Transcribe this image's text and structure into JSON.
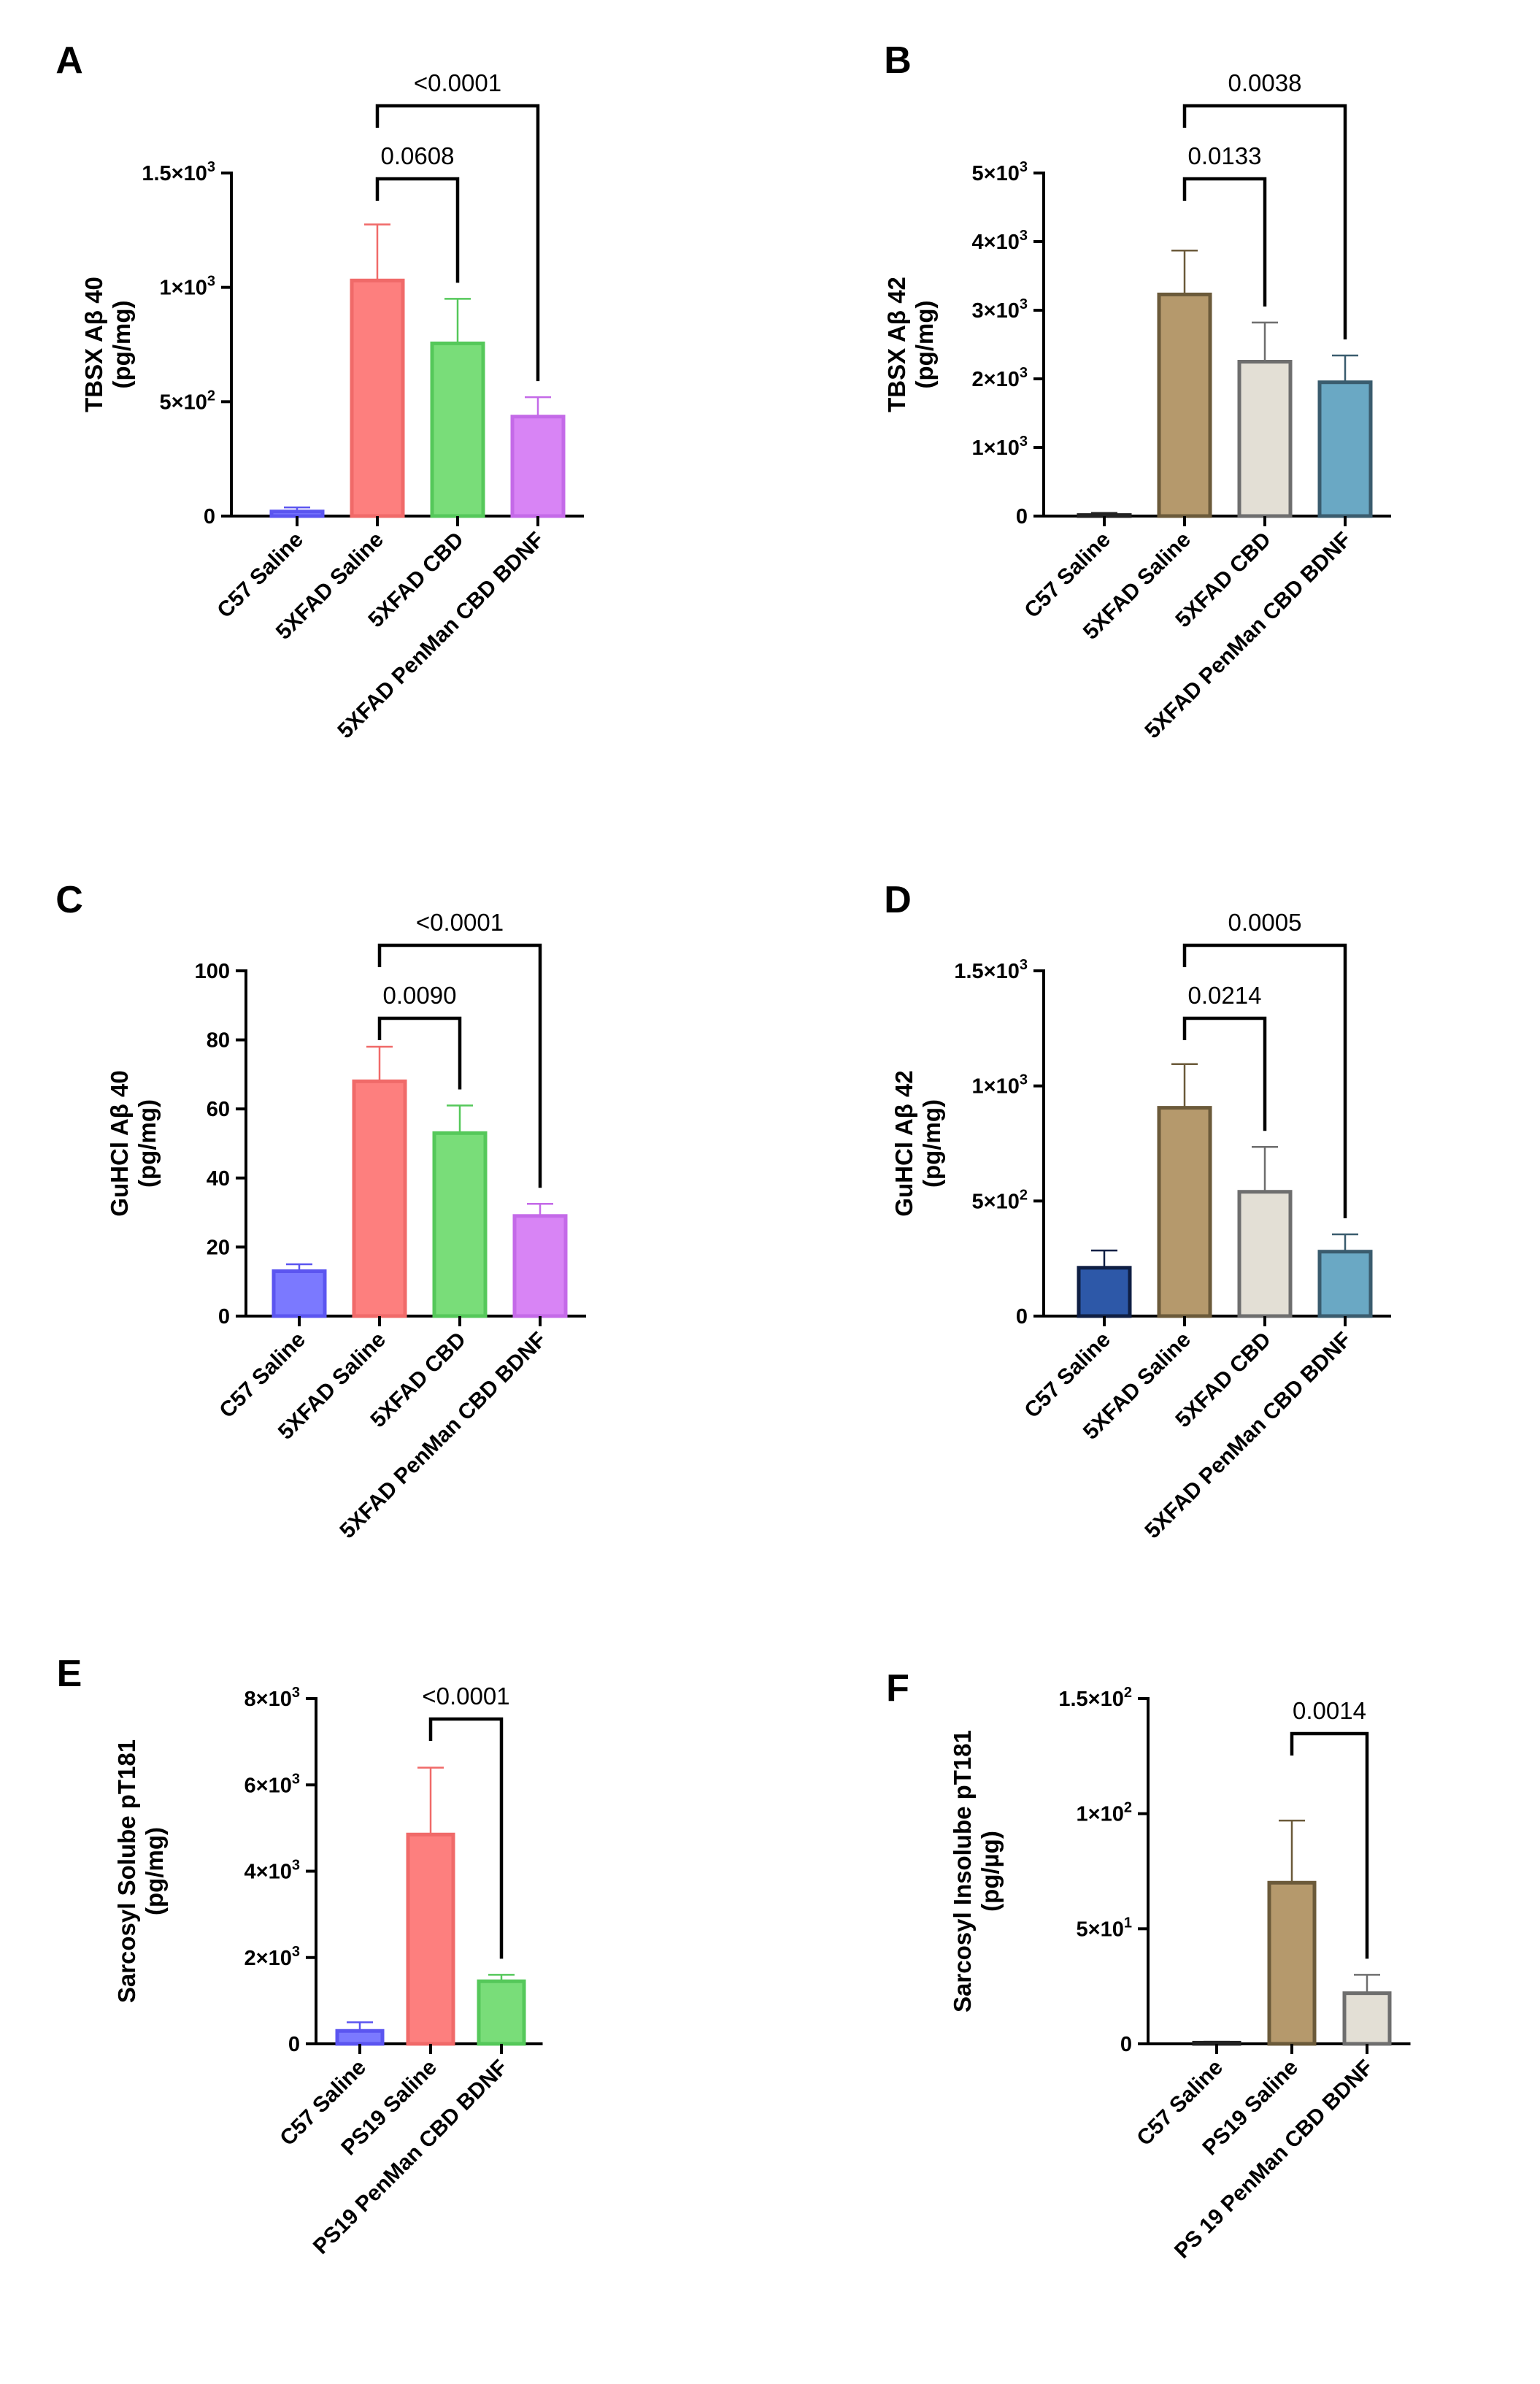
{
  "chart_data": [
    {
      "panel": "A",
      "type": "bar",
      "ylabel": [
        "TBSX Aβ 40",
        "(pg/mg)"
      ],
      "ylim": [
        0,
        1500
      ],
      "yticks": [
        {
          "v": 0,
          "l": "0"
        },
        {
          "v": 500,
          "b": "5",
          "e": "2"
        },
        {
          "v": 1000,
          "b": "1",
          "e": "3"
        },
        {
          "v": 1500,
          "b": "1.5",
          "e": "3"
        }
      ],
      "categories": [
        "C57 Saline",
        "5XFAD Saline",
        "5XFAD CBD",
        "5XFAD PenMan CBD BDNF"
      ],
      "values": [
        20,
        1030,
        755,
        435
      ],
      "errors": [
        18,
        245,
        195,
        85
      ],
      "colors": [
        "#7b79ff",
        "#fd7f7e",
        "#79dd79",
        "#d884f5"
      ],
      "edges": [
        "#5b55f0",
        "#f06a69",
        "#55c85a",
        "#c46ae8"
      ],
      "comparisons": [
        {
          "a": 1,
          "b": 2,
          "label": "0.0608"
        },
        {
          "a": 1,
          "b": 3,
          "label": "<0.0001"
        }
      ]
    },
    {
      "panel": "B",
      "type": "bar",
      "ylabel": [
        "TBSX Aβ 42",
        "(pg/mg)"
      ],
      "ylim": [
        0,
        5000
      ],
      "yticks": [
        {
          "v": 0,
          "l": "0"
        },
        {
          "v": 1000,
          "b": "1",
          "e": "3"
        },
        {
          "v": 2000,
          "b": "2",
          "e": "3"
        },
        {
          "v": 3000,
          "b": "3",
          "e": "3"
        },
        {
          "v": 4000,
          "b": "4",
          "e": "3"
        },
        {
          "v": 5000,
          "b": "5",
          "e": "3"
        }
      ],
      "categories": [
        "C57 Saline",
        "5XFAD Saline",
        "5XFAD CBD",
        "5XFAD PenMan CBD BDNF"
      ],
      "values": [
        15,
        3230,
        2250,
        1950
      ],
      "errors": [
        30,
        640,
        570,
        390
      ],
      "colors": [
        "#ffffff",
        "#b5996c",
        "#e3dfd5",
        "#6aa8c4"
      ],
      "edges": [
        "#222222",
        "#6b5a3a",
        "#6e6e6e",
        "#3a5c6e"
      ],
      "comparisons": [
        {
          "a": 1,
          "b": 2,
          "label": "0.0133"
        },
        {
          "a": 1,
          "b": 3,
          "label": "0.0038"
        }
      ]
    },
    {
      "panel": "C",
      "type": "bar",
      "ylabel": [
        "GuHCl Aβ 40",
        "(pg/mg)"
      ],
      "ylim": [
        0,
        100
      ],
      "yticks": [
        {
          "v": 0,
          "l": "0"
        },
        {
          "v": 20,
          "l": "20"
        },
        {
          "v": 40,
          "l": "40"
        },
        {
          "v": 60,
          "l": "60"
        },
        {
          "v": 80,
          "l": "80"
        },
        {
          "v": 100,
          "l": "100"
        }
      ],
      "categories": [
        "C57 Saline",
        "5XFAD Saline",
        "5XFAD CBD",
        "5XFAD PenMan CBD BDNF"
      ],
      "values": [
        13,
        68,
        53,
        29
      ],
      "errors": [
        2,
        10,
        8,
        3.5
      ],
      "colors": [
        "#7b79ff",
        "#fd7f7e",
        "#79dd79",
        "#d884f5"
      ],
      "edges": [
        "#5b55f0",
        "#f06a69",
        "#55c85a",
        "#c46ae8"
      ],
      "comparisons": [
        {
          "a": 1,
          "b": 2,
          "label": "0.0090"
        },
        {
          "a": 1,
          "b": 3,
          "label": "<0.0001"
        }
      ]
    },
    {
      "panel": "D",
      "type": "bar",
      "ylabel": [
        "GuHCl Aβ 42",
        "(pg/mg)"
      ],
      "ylim": [
        0,
        1500
      ],
      "yticks": [
        {
          "v": 0,
          "l": "0"
        },
        {
          "v": 500,
          "b": "5",
          "e": "2"
        },
        {
          "v": 1000,
          "b": "1",
          "e": "3"
        },
        {
          "v": 1500,
          "b": "1.5",
          "e": "3"
        }
      ],
      "categories": [
        "C57 Saline",
        "5XFAD Saline",
        "5XFAD CBD",
        "5XFAD PenMan CBD BDNF"
      ],
      "values": [
        210,
        905,
        540,
        280
      ],
      "errors": [
        75,
        190,
        195,
        75
      ],
      "colors": [
        "#2d58a8",
        "#b5996c",
        "#e3dfd5",
        "#6aa8c4"
      ],
      "edges": [
        "#0f1f44",
        "#6b5a3a",
        "#6e6e6e",
        "#3a5c6e"
      ],
      "comparisons": [
        {
          "a": 1,
          "b": 2,
          "label": "0.0214"
        },
        {
          "a": 1,
          "b": 3,
          "label": "0.0005"
        }
      ]
    },
    {
      "panel": "E",
      "type": "bar",
      "ylabel": [
        "Sarcosyl Solube pT181",
        "(pg/mg)"
      ],
      "ylim": [
        0,
        8000
      ],
      "yticks": [
        {
          "v": 0,
          "l": "0"
        },
        {
          "v": 2000,
          "b": "2",
          "e": "3"
        },
        {
          "v": 4000,
          "b": "4",
          "e": "3"
        },
        {
          "v": 6000,
          "b": "6",
          "e": "3"
        },
        {
          "v": 8000,
          "b": "8",
          "e": "3"
        }
      ],
      "categories": [
        "C57 Saline",
        "PS19 Saline",
        "PS19 PenMan CBD BDNF"
      ],
      "values": [
        300,
        4850,
        1450
      ],
      "errors": [
        200,
        1550,
        150
      ],
      "colors": [
        "#7b79ff",
        "#fd7f7e",
        "#79dd79"
      ],
      "edges": [
        "#5b55f0",
        "#f06a69",
        "#55c85a"
      ],
      "comparisons": [
        {
          "a": 1,
          "b": 2,
          "label": "<0.0001"
        }
      ]
    },
    {
      "panel": "F",
      "type": "bar",
      "ylabel": [
        "Sarcosyl Insolube pT181",
        "(pg/µg)"
      ],
      "ylim": [
        0,
        150
      ],
      "yticks": [
        {
          "v": 0,
          "l": "0"
        },
        {
          "v": 50,
          "b": "5",
          "e": "1"
        },
        {
          "v": 100,
          "b": "1",
          "e": "2"
        },
        {
          "v": 150,
          "b": "1.5",
          "e": "2"
        }
      ],
      "categories": [
        "C57 Saline",
        "PS19 Saline",
        "PS 19 PenMan CBD BDNF"
      ],
      "values": [
        0.5,
        70,
        22
      ],
      "errors": [
        0.4,
        27,
        8
      ],
      "colors": [
        "#ffffff",
        "#b5996c",
        "#e3dfd5"
      ],
      "edges": [
        "#222222",
        "#6b5a3a",
        "#6e6e6e"
      ],
      "comparisons": [
        {
          "a": 1,
          "b": 2,
          "label": "0.0014"
        }
      ]
    }
  ]
}
